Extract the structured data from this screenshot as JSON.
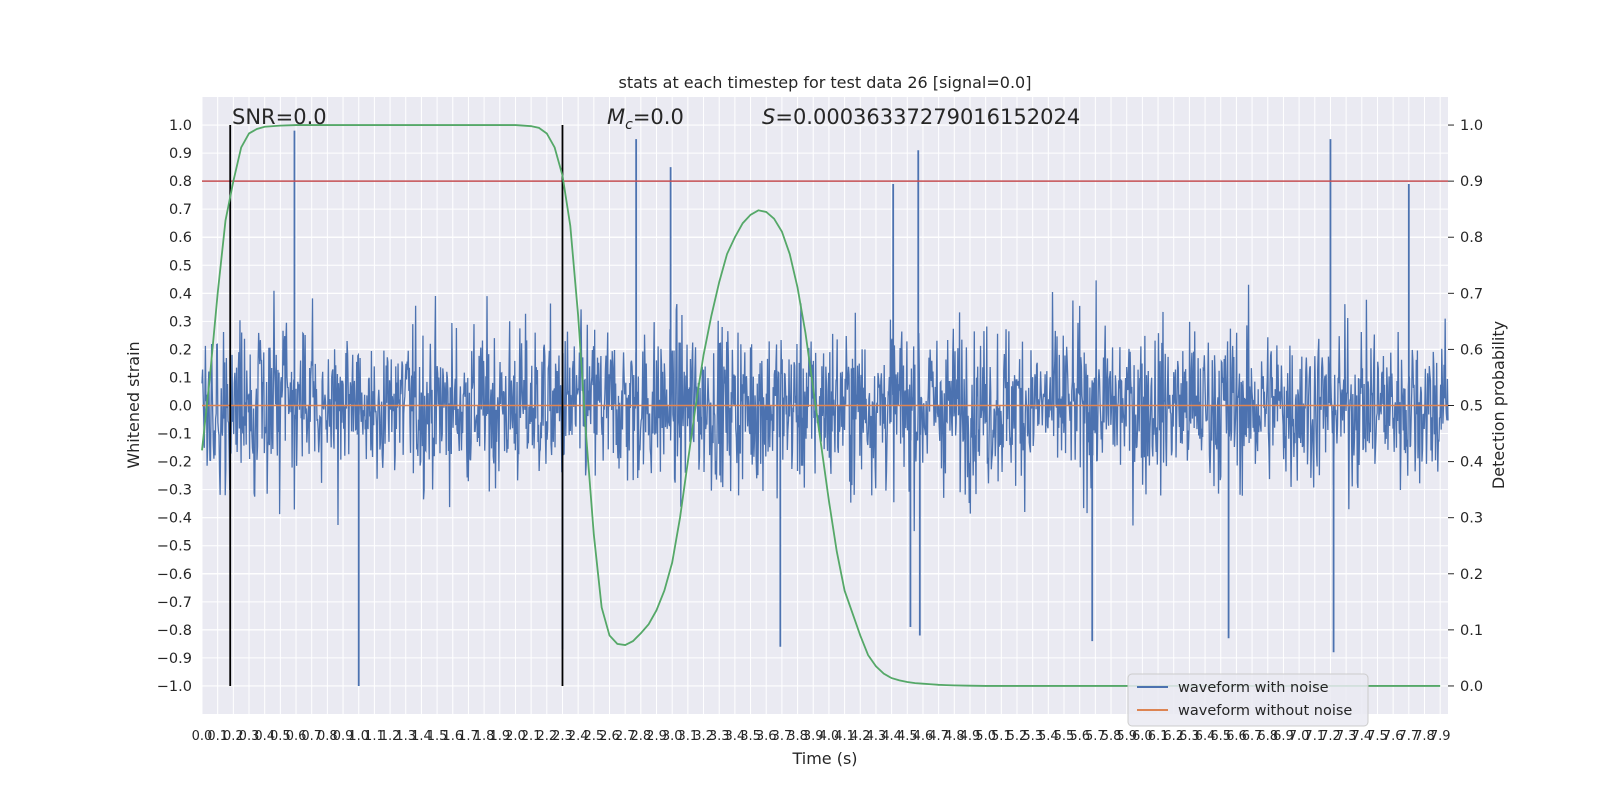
{
  "chart_data": {
    "type": "line",
    "title": "stats at each timestep for test data 26 [signal=0.0]",
    "xlabel": "Time (s)",
    "ylabel": "Whitened strain",
    "y2label": "Detection probability",
    "xlim": [
      0.0,
      7.95
    ],
    "ylim": [
      -1.1,
      1.1
    ],
    "y2lim": [
      -0.05,
      1.05
    ],
    "x_ticks": [
      "0.0",
      "0.1",
      "0.2",
      "0.3",
      "0.4",
      "0.5",
      "0.6",
      "0.7",
      "0.8",
      "0.9",
      "1.0",
      "1.1",
      "1.2",
      "1.3",
      "1.4",
      "1.5",
      "1.6",
      "1.7",
      "1.8",
      "1.9",
      "2.0",
      "2.1",
      "2.2",
      "2.3",
      "2.4",
      "2.5",
      "2.6",
      "2.7",
      "2.8",
      "2.9",
      "3.0",
      "3.1",
      "3.2",
      "3.3",
      "3.4",
      "3.5",
      "3.6",
      "3.7",
      "3.8",
      "3.9",
      "4.0",
      "4.1",
      "4.2",
      "4.3",
      "4.4",
      "4.5",
      "4.6",
      "4.7",
      "4.8",
      "4.9",
      "5.0",
      "5.1",
      "5.2",
      "5.3",
      "5.4",
      "5.5",
      "5.6",
      "5.7",
      "5.8",
      "5.9",
      "6.0",
      "6.1",
      "6.2",
      "6.3",
      "6.4",
      "6.5",
      "6.6",
      "6.7",
      "6.8",
      "6.9",
      "7.0",
      "7.1",
      "7.2",
      "7.3",
      "7.4",
      "7.5",
      "7.6",
      "7.7",
      "7.8",
      "7.9"
    ],
    "y_ticks": [
      "1.0",
      "0.9",
      "0.8",
      "0.7",
      "0.6",
      "0.5",
      "0.4",
      "0.3",
      "0.2",
      "0.1",
      "0.0",
      "−0.1",
      "−0.2",
      "−0.3",
      "−0.4",
      "−0.5",
      "−0.6",
      "−0.7",
      "−0.8",
      "−0.9",
      "−1.0"
    ],
    "y_tick_values": [
      1.0,
      0.9,
      0.8,
      0.7,
      0.6,
      0.5,
      0.4,
      0.3,
      0.2,
      0.1,
      0.0,
      -0.1,
      -0.2,
      -0.3,
      -0.4,
      -0.5,
      -0.6,
      -0.7,
      -0.8,
      -0.9,
      -1.0
    ],
    "y2_ticks": [
      "1.0",
      "0.9",
      "0.8",
      "0.7",
      "0.6",
      "0.5",
      "0.4",
      "0.3",
      "0.2",
      "0.1",
      "0.0"
    ],
    "y2_tick_values": [
      1.0,
      0.9,
      0.8,
      0.7,
      0.6,
      0.5,
      0.4,
      0.3,
      0.2,
      0.1,
      0.0
    ],
    "grid": true,
    "legend_position": "bottom-right",
    "annotations": {
      "snr": "SNR=0.0",
      "mc_symbol": "M",
      "mc_sub": "c",
      "mc_value": "=0.0",
      "s_symbol": "S",
      "s_value": "=0.00036337279016152024"
    },
    "vlines_x": [
      0.18,
      2.3
    ],
    "threshold_y2": 0.9,
    "series": [
      {
        "name": "waveform with noise",
        "color": "#4c72b0",
        "notable_spikes": [
          [
            0.59,
            0.98
          ],
          [
            1.0,
            -1.0
          ],
          [
            2.3,
            -0.87
          ],
          [
            2.77,
            0.95
          ],
          [
            2.99,
            0.85
          ],
          [
            3.69,
            -0.86
          ],
          [
            4.41,
            0.79
          ],
          [
            4.52,
            -0.79
          ],
          [
            4.57,
            0.91
          ],
          [
            4.58,
            -0.82
          ],
          [
            5.68,
            -0.84
          ],
          [
            6.55,
            -0.83
          ],
          [
            7.2,
            0.95
          ],
          [
            7.22,
            -0.88
          ],
          [
            7.7,
            0.79
          ]
        ]
      },
      {
        "name": "waveform without noise",
        "color": "#dd8452",
        "y": 0.0
      },
      {
        "name": "detection probability",
        "color": "#55a868",
        "axis": "right",
        "x": [
          0.0,
          0.05,
          0.1,
          0.15,
          0.2,
          0.25,
          0.3,
          0.35,
          0.4,
          0.5,
          0.6,
          0.8,
          1.0,
          1.5,
          2.0,
          2.1,
          2.15,
          2.2,
          2.25,
          2.3,
          2.35,
          2.4,
          2.45,
          2.5,
          2.55,
          2.6,
          2.65,
          2.7,
          2.75,
          2.8,
          2.85,
          2.9,
          2.95,
          3.0,
          3.05,
          3.1,
          3.15,
          3.2,
          3.25,
          3.3,
          3.35,
          3.4,
          3.45,
          3.5,
          3.55,
          3.6,
          3.65,
          3.7,
          3.75,
          3.8,
          3.85,
          3.9,
          3.95,
          4.0,
          4.05,
          4.1,
          4.15,
          4.2,
          4.25,
          4.3,
          4.35,
          4.4,
          4.45,
          4.5,
          4.55,
          4.6,
          4.65,
          4.7,
          4.75,
          4.8,
          4.9,
          5.0,
          6.0,
          7.0,
          7.9
        ],
        "y": [
          0.42,
          0.55,
          0.7,
          0.83,
          0.9,
          0.96,
          0.985,
          0.993,
          0.997,
          0.999,
          1.0,
          1.0,
          1.0,
          1.0,
          1.0,
          0.998,
          0.995,
          0.985,
          0.96,
          0.91,
          0.82,
          0.66,
          0.45,
          0.27,
          0.14,
          0.09,
          0.075,
          0.073,
          0.08,
          0.094,
          0.11,
          0.135,
          0.17,
          0.22,
          0.3,
          0.4,
          0.5,
          0.59,
          0.66,
          0.72,
          0.77,
          0.8,
          0.825,
          0.84,
          0.848,
          0.845,
          0.833,
          0.81,
          0.77,
          0.71,
          0.63,
          0.53,
          0.43,
          0.33,
          0.24,
          0.17,
          0.13,
          0.09,
          0.055,
          0.035,
          0.022,
          0.014,
          0.01,
          0.007,
          0.005,
          0.004,
          0.003,
          0.002,
          0.0015,
          0.001,
          0.0005,
          0.0,
          0.0,
          0.0,
          0.0
        ]
      }
    ]
  },
  "legend": {
    "items": [
      {
        "label": "waveform with noise",
        "color": "#4c72b0"
      },
      {
        "label": "waveform without noise",
        "color": "#dd8452"
      }
    ]
  }
}
